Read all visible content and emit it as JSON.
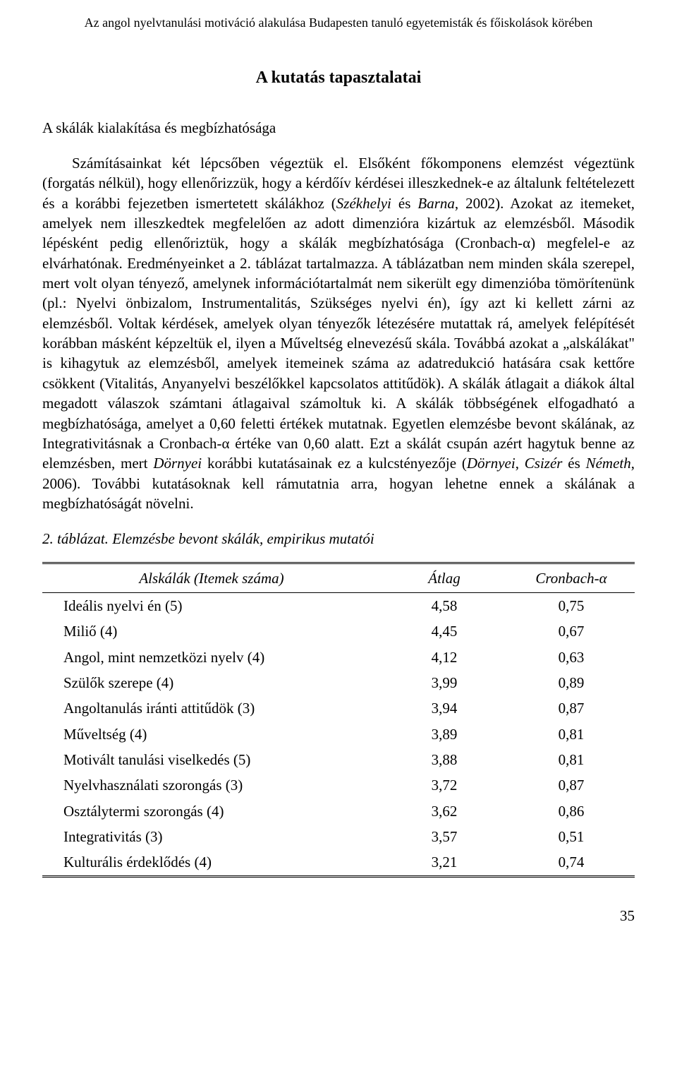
{
  "header": {
    "running": "Az angol nyelvtanulási motiváció alakulása Budapesten tanuló egyetemisták és főiskolások körében"
  },
  "section": {
    "title": "A kutatás tapasztalatai",
    "subsection": "A skálák kialakítása és megbízhatósága"
  },
  "paragraph": {
    "p1a": "Számításainkat két lépcsőben végeztük el. Elsőként főkomponens elemzést végeztünk (forgatás nélkül), hogy ellenőrizzük, hogy a kérdőív kérdései illeszkednek-e az általunk feltételezett és a korábbi fejezetben ismertetett skálákhoz (",
    "p1b": "Székhelyi",
    "p1c": " és ",
    "p1d": "Barna",
    "p1e": ", 2002). Azokat az itemeket, amelyek nem illeszkedtek megfelelően az adott dimenzióra kizártuk az elemzésből. Második lépésként pedig ellenőriztük, hogy a skálák megbízhatósága (Cronbach-α) megfelel-e az elvárhatónak. Eredményeinket a 2. táblázat tartalmazza. A táblázatban nem minden skála szerepel, mert volt olyan tényező, amelynek információtartalmát nem sikerült egy dimenzióba tömörítenünk (pl.: Nyelvi önbizalom, Instrumentalitás, Szükséges nyelvi én), így azt ki kellett zárni az elemzésből. Voltak kérdések, amelyek olyan tényezők létezésére mutattak rá, amelyek felépítését korábban másként képzeltük el, ilyen a Műveltség elnevezésű skála. Továbbá azokat a „alskálákat\" is kihagytuk az elemzésből, amelyek itemeinek száma az adatredukció hatására csak kettőre csökkent (Vitalitás, Anyanyelvi beszélőkkel kapcsolatos attitűdök). A skálák átlagait a diákok által megadott válaszok számtani átlagaival számoltuk ki. A skálák többségének elfogadható a megbízhatósága, amelyet a 0,60 feletti értékek mutatnak. Egyetlen elemzésbe bevont skálának, az Integrativitásnak a Cronbach-α értéke van 0,60 alatt. Ezt a skálát csupán azért hagytuk benne az elemzésben, mert ",
    "p1f": "Dörnyei",
    "p1g": " korábbi kutatásainak ez a kulcstényezője (",
    "p1h": "Dörnyei",
    "p1i": ", ",
    "p1j": "Csizér",
    "p1k": " és ",
    "p1l": "Németh",
    "p1m": ", 2006). További kutatásoknak kell rámutatnia arra, hogyan lehetne ennek a skálának a megbízhatóságát növelni."
  },
  "table": {
    "caption_num": "2. táblázat.",
    "caption_text": " Elemzésbe bevont skálák, empirikus mutatói",
    "columns": [
      "Alskálák (Itemek száma)",
      "Átlag",
      "Cronbach-α"
    ],
    "rows": [
      [
        "Ideális nyelvi én (5)",
        "4,58",
        "0,75"
      ],
      [
        "Miliő (4)",
        "4,45",
        "0,67"
      ],
      [
        "Angol, mint nemzetközi nyelv (4)",
        "4,12",
        "0,63"
      ],
      [
        "Szülők szerepe (4)",
        "3,99",
        "0,89"
      ],
      [
        "Angoltanulás iránti attitűdök (3)",
        "3,94",
        "0,87"
      ],
      [
        "Műveltség (4)",
        "3,89",
        "0,81"
      ],
      [
        "Motivált tanulási viselkedés (5)",
        "3,88",
        "0,81"
      ],
      [
        "Nyelvhasználati szorongás (3)",
        "3,72",
        "0,87"
      ],
      [
        "Osztálytermi szorongás (4)",
        "3,62",
        "0,86"
      ],
      [
        "Integrativitás (3)",
        "3,57",
        "0,51"
      ],
      [
        "Kulturális érdeklődés (4)",
        "3,21",
        "0,74"
      ]
    ]
  },
  "page": {
    "number": "35"
  }
}
